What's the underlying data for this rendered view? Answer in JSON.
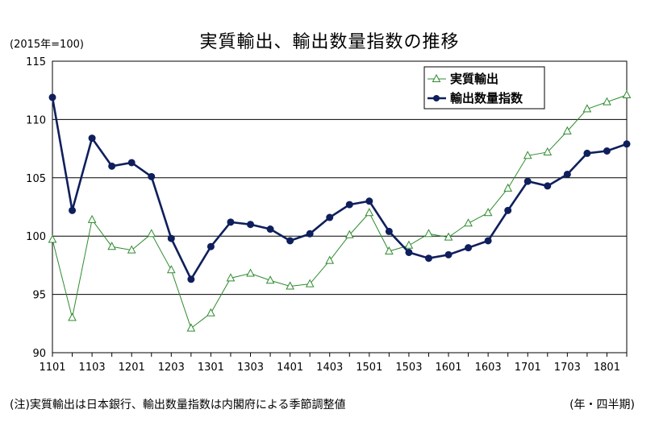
{
  "title": "実質輸出、輸出数量指数の推移",
  "unit_label": "(2015年=100)",
  "note": "(注)実質輸出は日本銀行、輸出数量指数は内閣府による季節調整値",
  "x_unit_label": "(年・四半期)",
  "chart_data": {
    "type": "line",
    "title": "実質輸出、輸出数量指数の推移",
    "ylim": [
      90,
      115
    ],
    "yticks": [
      90,
      95,
      100,
      105,
      110,
      115
    ],
    "grid": true,
    "legend_placement": "top-right",
    "x": [
      "1101",
      "1102",
      "1103",
      "1104",
      "1201",
      "1202",
      "1203",
      "1204",
      "1301",
      "1302",
      "1303",
      "1304",
      "1401",
      "1402",
      "1403",
      "1404",
      "1501",
      "1502",
      "1503",
      "1504",
      "1601",
      "1602",
      "1603",
      "1604",
      "1701",
      "1702",
      "1703",
      "1704",
      "1801",
      "1802"
    ],
    "xtick_labels": [
      "1101",
      "1103",
      "1201",
      "1203",
      "1301",
      "1303",
      "1401",
      "1403",
      "1501",
      "1503",
      "1601",
      "1603",
      "1701",
      "1703",
      "1801"
    ],
    "series": [
      {
        "name": "実質輸出",
        "color": "#2e8b2e",
        "marker": "triangle-open",
        "values": [
          99.7,
          93.0,
          101.4,
          99.1,
          98.8,
          100.2,
          97.1,
          92.1,
          93.4,
          96.4,
          96.8,
          96.2,
          95.7,
          95.9,
          97.9,
          100.1,
          102.0,
          98.7,
          99.2,
          100.2,
          99.9,
          101.1,
          102.0,
          104.1,
          106.9,
          107.2,
          109.0,
          110.9,
          111.5,
          112.1
        ]
      },
      {
        "name": "輸出数量指数",
        "color": "#0f1f5c",
        "marker": "circle-filled",
        "values": [
          111.9,
          102.2,
          108.4,
          106.0,
          106.3,
          105.1,
          99.8,
          96.3,
          99.1,
          101.2,
          101.0,
          100.6,
          99.6,
          100.2,
          101.6,
          102.7,
          103.0,
          100.4,
          98.6,
          98.1,
          98.4,
          99.0,
          99.6,
          102.2,
          104.7,
          104.3,
          105.3,
          107.1,
          107.3,
          107.9
        ]
      }
    ]
  }
}
